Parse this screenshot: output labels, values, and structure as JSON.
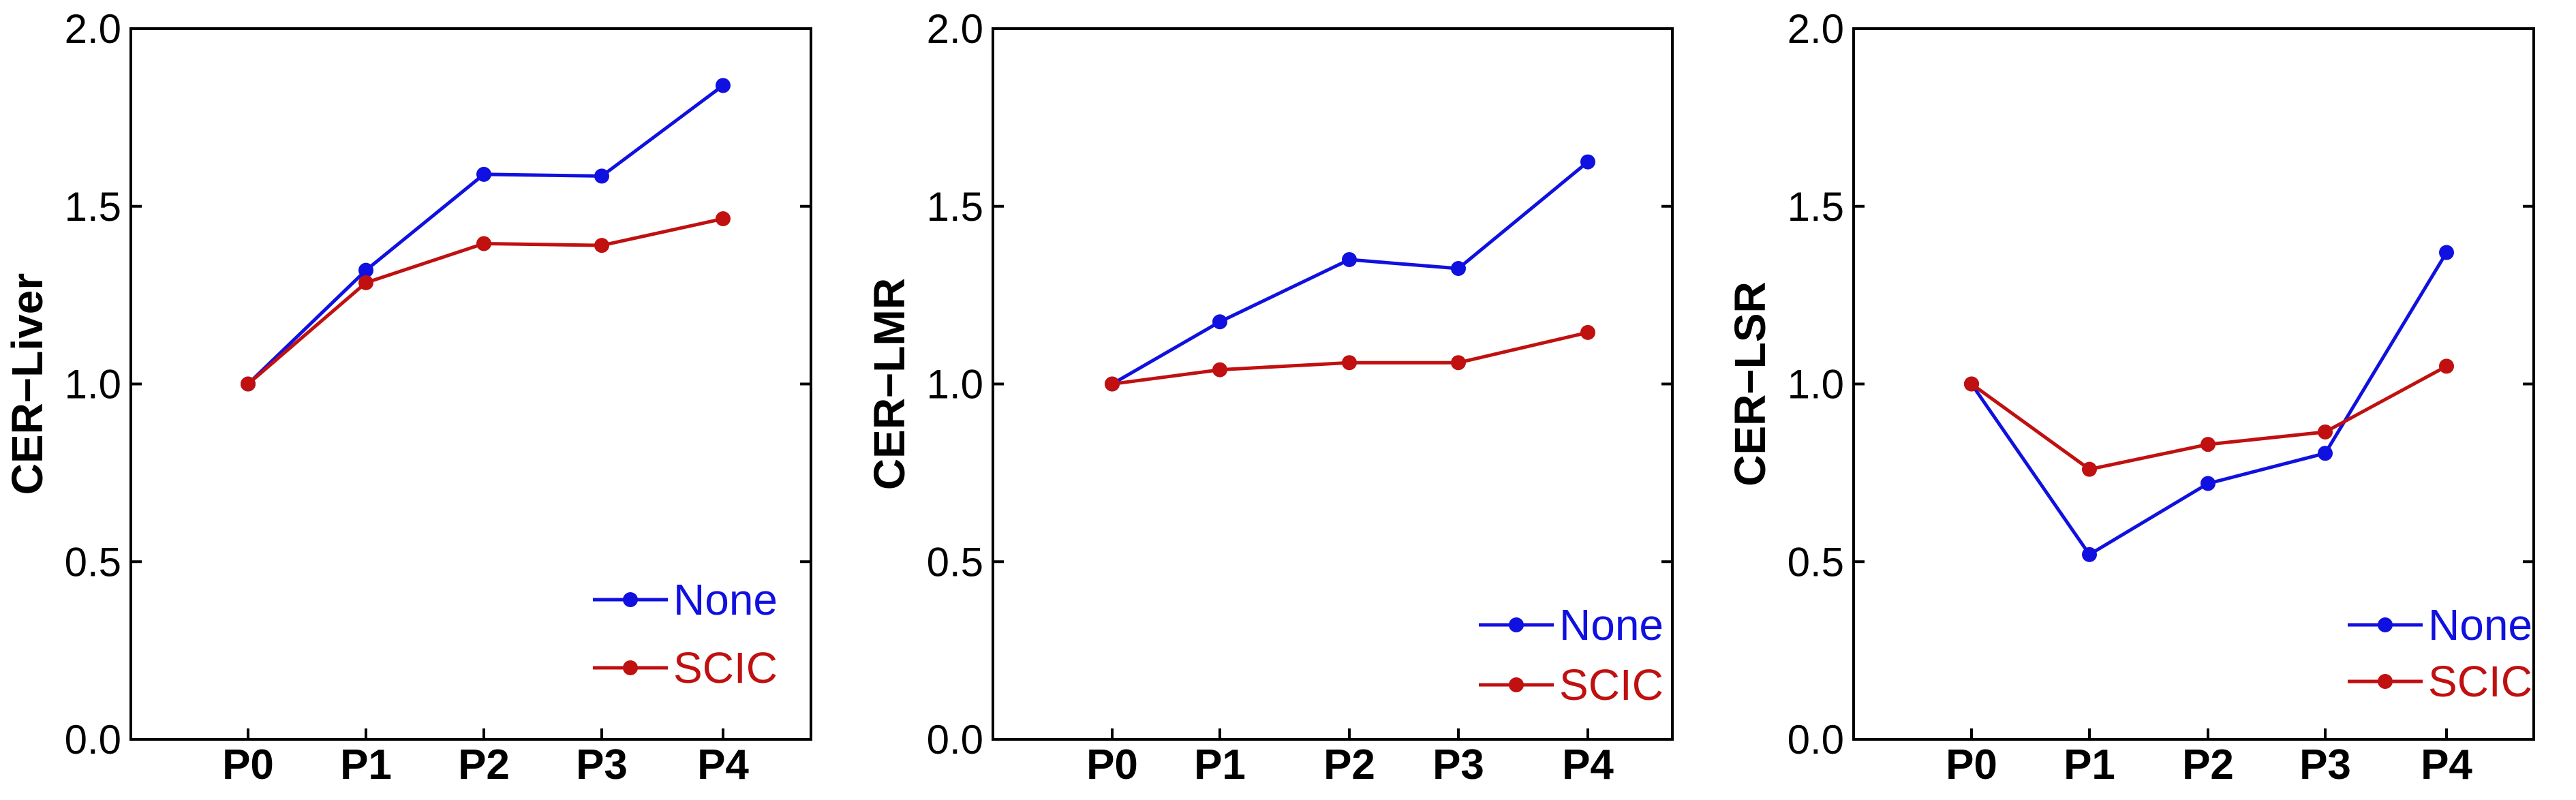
{
  "chart_data": [
    {
      "type": "line",
      "title": "",
      "xlabel": "",
      "ylabel": "CER−Liver",
      "categories": [
        "P0",
        "P1",
        "P2",
        "P3",
        "P4"
      ],
      "ylim": [
        0.0,
        2.0
      ],
      "yticks": [
        "0.0",
        "0.5",
        "1.0",
        "1.5",
        "2.0"
      ],
      "legend_position": "bottom-right",
      "series": [
        {
          "name": "None",
          "color": "#1010e0",
          "values": [
            1.0,
            1.32,
            1.59,
            1.585,
            1.84
          ]
        },
        {
          "name": "SCIC",
          "color": "#c01010",
          "values": [
            1.0,
            1.285,
            1.395,
            1.39,
            1.465
          ]
        }
      ]
    },
    {
      "type": "line",
      "title": "",
      "xlabel": "",
      "ylabel": "CER−LMR",
      "categories": [
        "P0",
        "P1",
        "P2",
        "P3",
        "P4"
      ],
      "ylim": [
        0.0,
        2.0
      ],
      "yticks": [
        "0.0",
        "0.5",
        "1.0",
        "1.5",
        "2.0"
      ],
      "legend_position": "bottom-right",
      "series": [
        {
          "name": "None",
          "color": "#1010e0",
          "values": [
            1.0,
            1.175,
            1.35,
            1.325,
            1.625
          ]
        },
        {
          "name": "SCIC",
          "color": "#c01010",
          "values": [
            1.0,
            1.04,
            1.06,
            1.06,
            1.145
          ]
        }
      ]
    },
    {
      "type": "line",
      "title": "",
      "xlabel": "",
      "ylabel": "CER−LSR",
      "categories": [
        "P0",
        "P1",
        "P2",
        "P3",
        "P4"
      ],
      "ylim": [
        0.0,
        2.0
      ],
      "yticks": [
        "0.0",
        "0.5",
        "1.0",
        "1.5",
        "2.0"
      ],
      "legend_position": "bottom-right",
      "series": [
        {
          "name": "None",
          "color": "#1010e0",
          "values": [
            1.0,
            0.52,
            0.72,
            0.805,
            1.37
          ]
        },
        {
          "name": "SCIC",
          "color": "#c01010",
          "values": [
            1.0,
            0.76,
            0.83,
            0.865,
            1.05
          ]
        }
      ]
    }
  ]
}
